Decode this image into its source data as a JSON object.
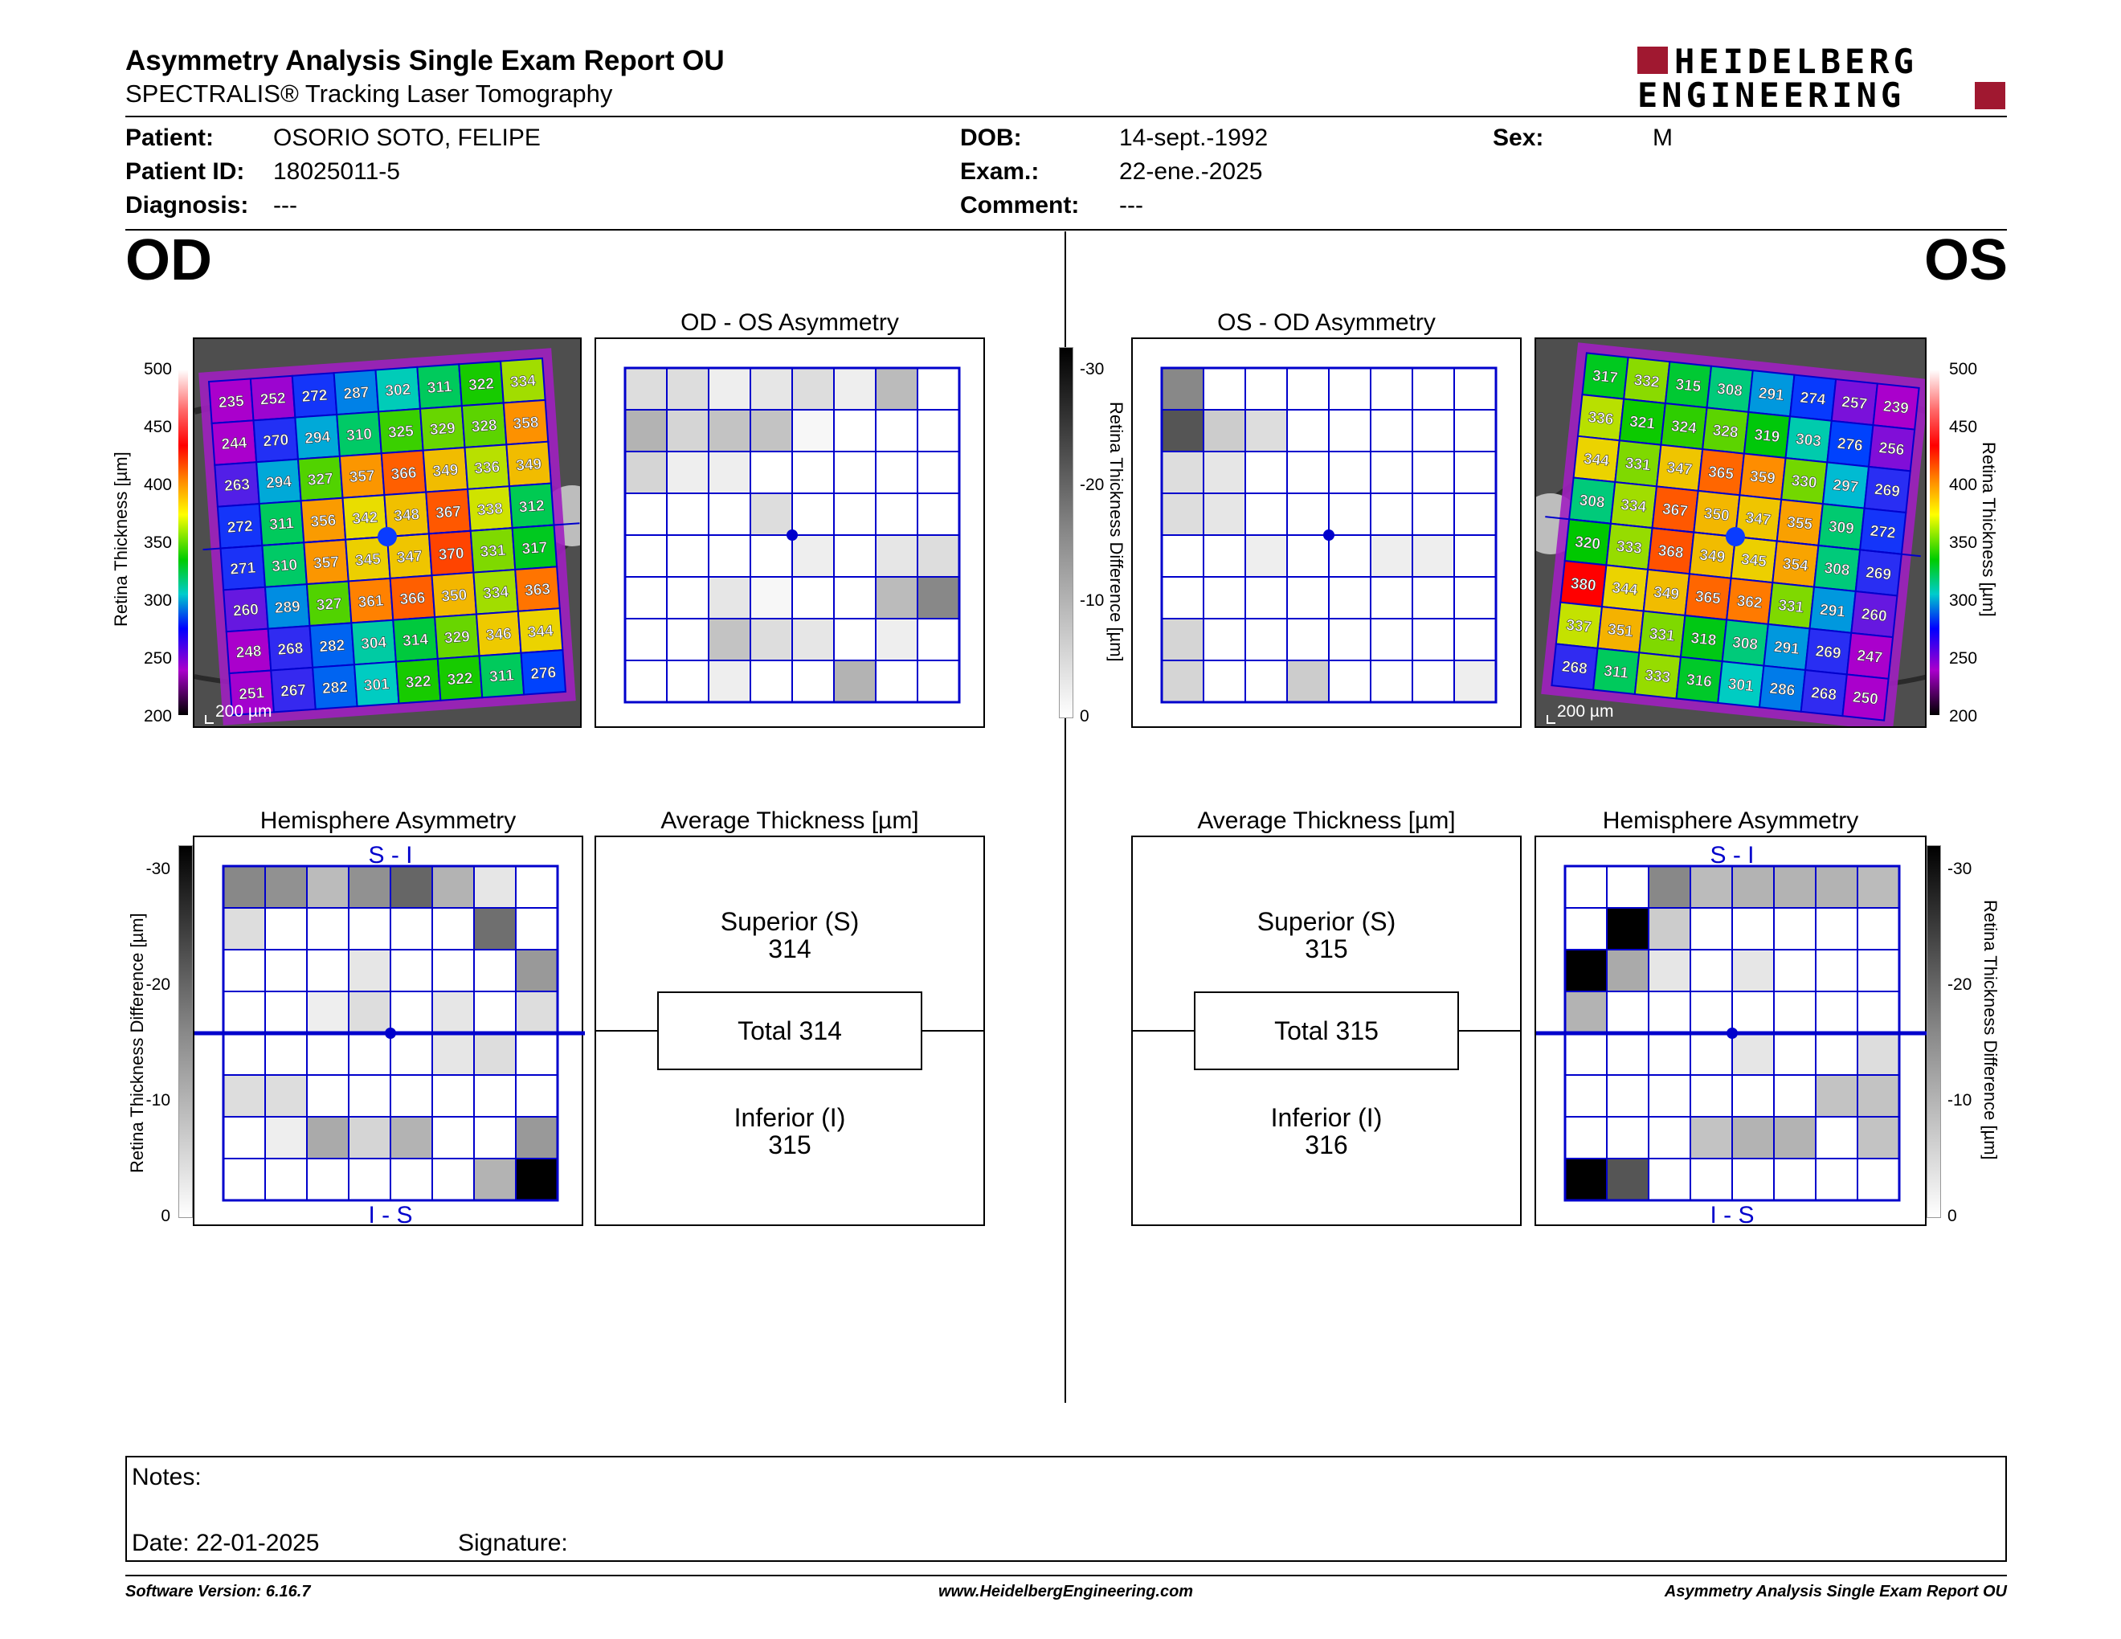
{
  "header": {
    "title": "Asymmetry Analysis Single Exam Report OU",
    "subtitle": "SPECTRALIS® Tracking Laser Tomography",
    "logo_line1": "HEIDELBERG",
    "logo_line2": "ENGINEERING"
  },
  "patient": {
    "patient_label": "Patient:",
    "patient_value": "OSORIO SOTO, FELIPE",
    "id_label": "Patient ID:",
    "id_value": "18025011-5",
    "diag_label": "Diagnosis:",
    "diag_value": "---",
    "dob_label": "DOB:",
    "dob_value": "14-sept.-1992",
    "exam_label": "Exam.:",
    "exam_value": "22-ene.-2025",
    "comment_label": "Comment:",
    "comment_value": "---",
    "sex_label": "Sex:",
    "sex_value": "M"
  },
  "eyes": {
    "od": "OD",
    "os": "OS"
  },
  "scales": {
    "thickness_label": "Retina  Thickness [µm]",
    "thickness_ticks": [
      "500",
      "450",
      "400",
      "350",
      "300",
      "250",
      "200"
    ],
    "diff_label": "Retina Thickness Difference [µm]",
    "diff_ticks": [
      "-30",
      "-20",
      "-10",
      "0"
    ],
    "scale_bar": "200 µm"
  },
  "od": {
    "thickness_grid": [
      [
        "235",
        "252",
        "272",
        "287",
        "302",
        "311",
        "322",
        "334"
      ],
      [
        "244",
        "270",
        "294",
        "310",
        "325",
        "329",
        "328",
        "358"
      ],
      [
        "263",
        "294",
        "327",
        "357",
        "366",
        "349",
        "336",
        "349"
      ],
      [
        "272",
        "311",
        "356",
        "342",
        "348",
        "367",
        "338",
        "312"
      ],
      [
        "271",
        "310",
        "357",
        "345",
        "347",
        "370",
        "331",
        "317"
      ],
      [
        "260",
        "289",
        "327",
        "361",
        "366",
        "350",
        "334",
        "363"
      ],
      [
        "248",
        "268",
        "282",
        "304",
        "314",
        "329",
        "346",
        "344"
      ],
      [
        "251",
        "267",
        "282",
        "301",
        "322",
        "322",
        "311",
        "276"
      ]
    ],
    "asym_title": "OD - OS Asymmetry",
    "asym_grid": [
      [
        4,
        4,
        2,
        3,
        4,
        2,
        8,
        0
      ],
      [
        9,
        5,
        7,
        7,
        1,
        0,
        0,
        0
      ],
      [
        5,
        2,
        2,
        0,
        0,
        0,
        0,
        0
      ],
      [
        0,
        0,
        0,
        4,
        0,
        0,
        0,
        0
      ],
      [
        0,
        0,
        0,
        0,
        2,
        0,
        3,
        4
      ],
      [
        0,
        0,
        3,
        1,
        0,
        0,
        8,
        14
      ],
      [
        0,
        0,
        7,
        4,
        3,
        0,
        2,
        0
      ],
      [
        0,
        0,
        2,
        0,
        0,
        9,
        0,
        0
      ]
    ],
    "hemi_title": "Hemisphere Asymmetry",
    "hemi_top": "S - I",
    "hemi_bottom": "I - S",
    "hemi_grid": [
      [
        14,
        13,
        8,
        13,
        18,
        9,
        3,
        0
      ],
      [
        4,
        0,
        0,
        0,
        0,
        0,
        17,
        0
      ],
      [
        0,
        0,
        0,
        3,
        0,
        0,
        0,
        12
      ],
      [
        0,
        0,
        2,
        4,
        0,
        3,
        0,
        4
      ],
      [
        0,
        0,
        0,
        0,
        0,
        3,
        4,
        0
      ],
      [
        4,
        4,
        0,
        0,
        0,
        0,
        0,
        0
      ],
      [
        0,
        2,
        10,
        5,
        9,
        0,
        0,
        12
      ],
      [
        0,
        0,
        0,
        0,
        0,
        0,
        9,
        30
      ]
    ],
    "avg_title": "Average Thickness [µm]",
    "superior_label": "Superior (S)",
    "superior_value": "314",
    "total_label": "Total 314",
    "inferior_label": "Inferior (I)",
    "inferior_value": "315"
  },
  "os": {
    "thickness_grid": [
      [
        "317",
        "332",
        "315",
        "308",
        "291",
        "274",
        "257",
        "239"
      ],
      [
        "336",
        "321",
        "324",
        "328",
        "319",
        "303",
        "276",
        "256"
      ],
      [
        "344",
        "331",
        "347",
        "365",
        "359",
        "330",
        "297",
        "269"
      ],
      [
        "308",
        "334",
        "367",
        "350",
        "347",
        "355",
        "309",
        "272"
      ],
      [
        "320",
        "333",
        "368",
        "349",
        "345",
        "354",
        "308",
        "269"
      ],
      [
        "380",
        "344",
        "349",
        "365",
        "362",
        "331",
        "291",
        "260"
      ],
      [
        "337",
        "351",
        "331",
        "318",
        "308",
        "291",
        "269",
        "247"
      ],
      [
        "268",
        "311",
        "333",
        "316",
        "301",
        "286",
        "268",
        "250"
      ]
    ],
    "asym_title": "OS - OD Asymmetry",
    "asym_grid": [
      [
        14,
        0,
        0,
        0,
        0,
        0,
        0,
        0
      ],
      [
        20,
        6,
        4,
        0,
        0,
        0,
        0,
        0
      ],
      [
        4,
        3,
        0,
        0,
        0,
        0,
        0,
        0
      ],
      [
        4,
        3,
        0,
        0,
        0,
        0,
        0,
        0
      ],
      [
        0,
        0,
        2,
        0,
        0,
        2,
        2,
        0
      ],
      [
        0,
        0,
        0,
        0,
        0,
        0,
        0,
        0
      ],
      [
        5,
        0,
        0,
        0,
        0,
        0,
        0,
        0
      ],
      [
        5,
        0,
        0,
        6,
        0,
        0,
        0,
        2
      ]
    ],
    "hemi_title": "Hemisphere Asymmetry",
    "hemi_top": "S - I",
    "hemi_bottom": "I - S",
    "hemi_grid": [
      [
        0,
        0,
        14,
        8,
        9,
        9,
        9,
        8
      ],
      [
        0,
        30,
        6,
        0,
        0,
        0,
        0,
        0
      ],
      [
        30,
        10,
        3,
        0,
        3,
        0,
        0,
        0
      ],
      [
        9,
        0,
        0,
        0,
        0,
        0,
        0,
        0
      ],
      [
        0,
        0,
        0,
        0,
        3,
        0,
        0,
        4
      ],
      [
        0,
        0,
        0,
        0,
        0,
        0,
        7,
        7
      ],
      [
        0,
        0,
        0,
        7,
        9,
        9,
        0,
        7
      ],
      [
        30,
        20,
        0,
        0,
        0,
        0,
        0,
        0
      ]
    ],
    "avg_title": "Average Thickness [µm]",
    "superior_label": "Superior (S)",
    "superior_value": "315",
    "total_label": "Total 315",
    "inferior_label": "Inferior (I)",
    "inferior_value": "316"
  },
  "notes": {
    "notes_label": "Notes:",
    "date_label": "Date: 22-01-2025",
    "signature_label": "Signature:"
  },
  "footer": {
    "version": "Software Version: 6.16.7",
    "url": "www.HeidelbergEngineering.com",
    "report": "Asymmetry Analysis Single Exam Report OU"
  },
  "colors": {
    "grid_blue": "#0000cc",
    "logo_red": "#a01830"
  }
}
